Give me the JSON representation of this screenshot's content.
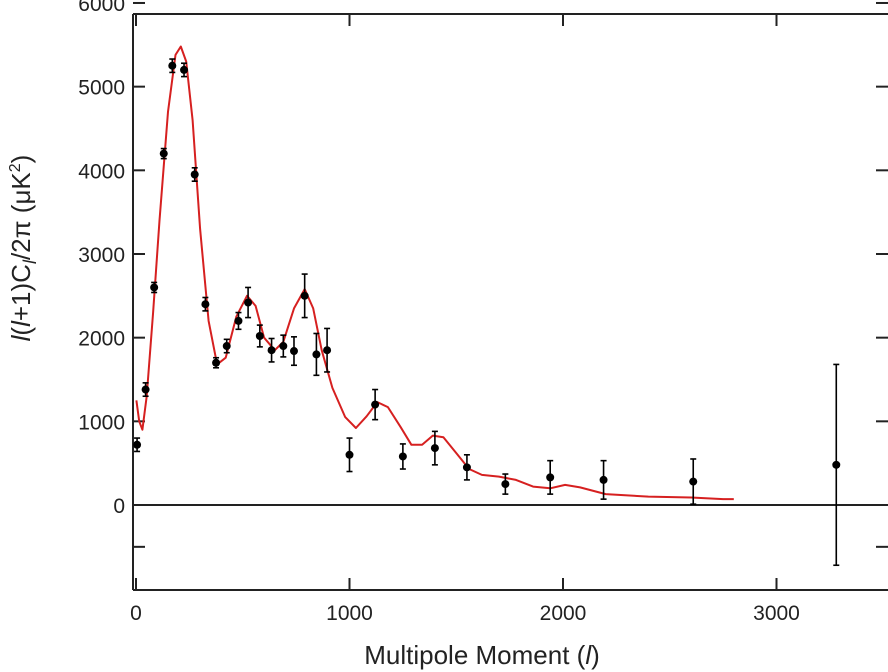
{
  "chart_data": {
    "type": "scatter",
    "xlabel": "Multipole Moment (l)",
    "ylabel": "l(l+1)C_l/2π (μK²)",
    "ylabel_parts": {
      "p1": "l",
      "p2": "(",
      "p3": "l",
      "p4": "+1)C",
      "p5": "l",
      "p6": "/2π (μK",
      "p7": "2",
      "p8": ")"
    },
    "xlabel_parts": {
      "p1": "Multipole Moment (",
      "p2": "l",
      "p3": ")"
    },
    "xlim": [
      0,
      3500
    ],
    "ylim": [
      -1000,
      6000
    ],
    "x_ticks": [
      0,
      1000,
      2000,
      3000
    ],
    "x_tick_labels": [
      "0",
      "1000",
      "2000",
      "3000"
    ],
    "y_ticks": [
      0,
      1000,
      2000,
      3000,
      4000,
      5000,
      6000
    ],
    "y_tick_labels": [
      "0",
      "1000",
      "2000",
      "3000",
      "4000",
      "5000",
      "6000"
    ],
    "zero_line": 0,
    "grid": false,
    "colors": {
      "data": "#000000",
      "model": "#d62020",
      "axis": "#222222"
    },
    "series": [
      {
        "kind": "points_with_error",
        "points": [
          {
            "x": 5,
            "y": 720,
            "err": 80
          },
          {
            "x": 45,
            "y": 1380,
            "err": 80
          },
          {
            "x": 85,
            "y": 2600,
            "err": 60
          },
          {
            "x": 130,
            "y": 4200,
            "err": 60
          },
          {
            "x": 170,
            "y": 5250,
            "err": 80
          },
          {
            "x": 225,
            "y": 5200,
            "err": 80
          },
          {
            "x": 275,
            "y": 3950,
            "err": 80
          },
          {
            "x": 325,
            "y": 2400,
            "err": 80
          },
          {
            "x": 375,
            "y": 1700,
            "err": 60
          },
          {
            "x": 425,
            "y": 1900,
            "err": 80
          },
          {
            "x": 480,
            "y": 2200,
            "err": 100
          },
          {
            "x": 525,
            "y": 2420,
            "err": 180
          },
          {
            "x": 580,
            "y": 2020,
            "err": 130
          },
          {
            "x": 635,
            "y": 1850,
            "err": 140
          },
          {
            "x": 690,
            "y": 1900,
            "err": 130
          },
          {
            "x": 740,
            "y": 1840,
            "err": 170
          },
          {
            "x": 790,
            "y": 2500,
            "err": 260
          },
          {
            "x": 845,
            "y": 1800,
            "err": 250
          },
          {
            "x": 895,
            "y": 1850,
            "err": 260
          },
          {
            "x": 1000,
            "y": 600,
            "err": 200
          },
          {
            "x": 1120,
            "y": 1200,
            "err": 180
          },
          {
            "x": 1250,
            "y": 580,
            "err": 150
          },
          {
            "x": 1400,
            "y": 680,
            "err": 200
          },
          {
            "x": 1550,
            "y": 450,
            "err": 150
          },
          {
            "x": 1730,
            "y": 250,
            "err": 120
          },
          {
            "x": 1940,
            "y": 330,
            "err": 200
          },
          {
            "x": 2190,
            "y": 300,
            "err": 230
          },
          {
            "x": 2610,
            "y": 280,
            "err": 270
          },
          {
            "x": 3280,
            "y": 480,
            "err": 1200
          }
        ]
      },
      {
        "kind": "model_curve",
        "points": [
          [
            2,
            1250
          ],
          [
            15,
            1000
          ],
          [
            30,
            900
          ],
          [
            50,
            1300
          ],
          [
            80,
            2300
          ],
          [
            110,
            3400
          ],
          [
            150,
            4700
          ],
          [
            185,
            5380
          ],
          [
            210,
            5480
          ],
          [
            235,
            5300
          ],
          [
            265,
            4600
          ],
          [
            300,
            3300
          ],
          [
            340,
            2200
          ],
          [
            380,
            1680
          ],
          [
            420,
            1760
          ],
          [
            470,
            2250
          ],
          [
            520,
            2500
          ],
          [
            560,
            2380
          ],
          [
            600,
            2000
          ],
          [
            650,
            1850
          ],
          [
            690,
            1950
          ],
          [
            740,
            2350
          ],
          [
            790,
            2580
          ],
          [
            830,
            2350
          ],
          [
            870,
            1850
          ],
          [
            920,
            1400
          ],
          [
            980,
            1050
          ],
          [
            1030,
            920
          ],
          [
            1080,
            1060
          ],
          [
            1130,
            1230
          ],
          [
            1180,
            1170
          ],
          [
            1240,
            930
          ],
          [
            1290,
            720
          ],
          [
            1340,
            720
          ],
          [
            1390,
            830
          ],
          [
            1440,
            810
          ],
          [
            1500,
            620
          ],
          [
            1560,
            430
          ],
          [
            1620,
            360
          ],
          [
            1700,
            340
          ],
          [
            1780,
            300
          ],
          [
            1860,
            220
          ],
          [
            1940,
            200
          ],
          [
            2010,
            240
          ],
          [
            2080,
            210
          ],
          [
            2200,
            130
          ],
          [
            2400,
            100
          ],
          [
            2600,
            90
          ],
          [
            2750,
            70
          ],
          [
            2800,
            70
          ]
        ]
      }
    ]
  }
}
